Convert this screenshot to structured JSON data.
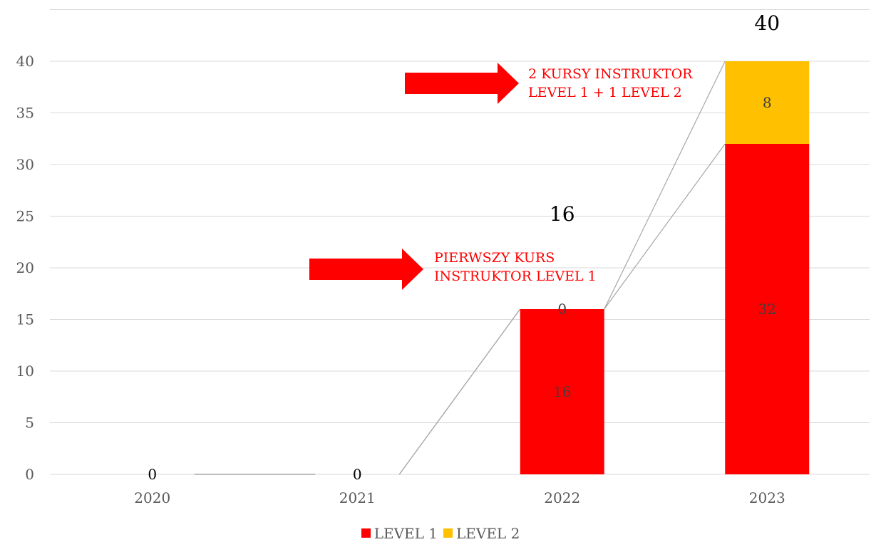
{
  "chart_data": {
    "type": "bar",
    "stacked": true,
    "categories": [
      "2020",
      "2021",
      "2022",
      "2023"
    ],
    "series": [
      {
        "name": "LEVEL 1",
        "color": "#ff0000",
        "values": [
          0,
          0,
          16,
          32
        ]
      },
      {
        "name": "LEVEL 2",
        "color": "#ffc000",
        "values": [
          0,
          0,
          0,
          8
        ]
      }
    ],
    "totals": [
      null,
      null,
      16,
      40
    ],
    "ylim": [
      0,
      45
    ],
    "yticks": [
      0,
      5,
      10,
      15,
      20,
      25,
      30,
      35,
      40
    ],
    "grid": true,
    "legend": "bottom",
    "annotations": [
      {
        "lines": [
          "PIERWSZY KURS",
          "INSTRUKTOR LEVEL 1"
        ],
        "category": "2022",
        "color": "#ff0000"
      },
      {
        "lines": [
          "2 KURSY INSTRUKTOR",
          "LEVEL 1 + 1 LEVEL 2"
        ],
        "category": "2023",
        "color": "#ff0000"
      }
    ]
  }
}
